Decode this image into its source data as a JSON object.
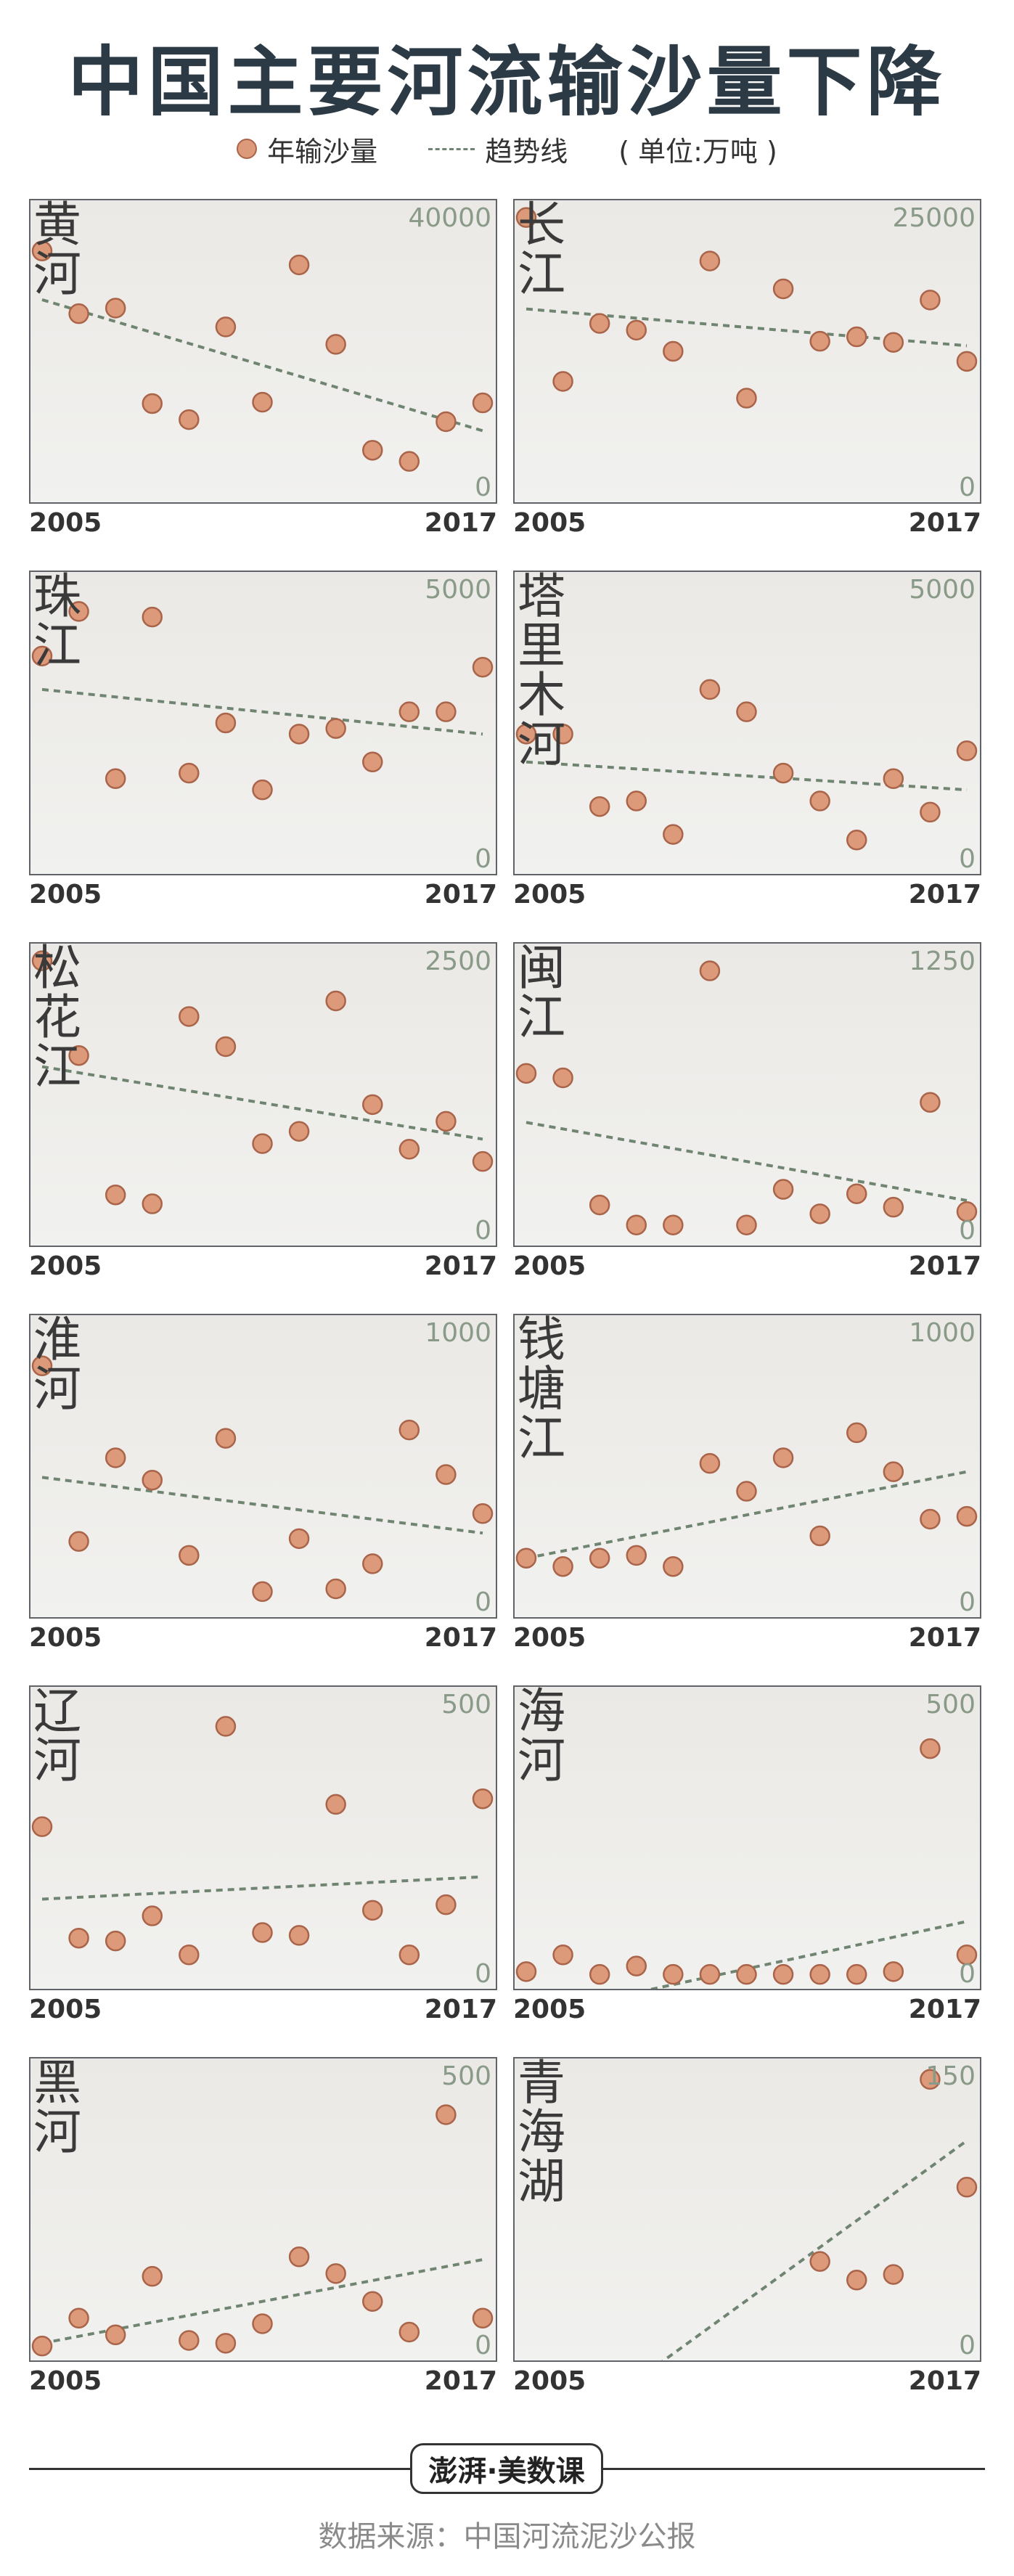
{
  "title": "中国主要河流输沙量下降",
  "legend": {
    "points": "年输沙量",
    "trend": "趋势线",
    "unit": "( 单位:万吨 )"
  },
  "colors": {
    "point_fill": "#dc9a7a",
    "point_stroke": "#a9644a",
    "trend": "#6f8571",
    "axis_text": "#8a9a88"
  },
  "footer": {
    "logo": "澎湃·美数课",
    "source": "数据来源：中国河流泥沙公报"
  },
  "chart_data": [
    {
      "type": "scatter",
      "name": "黄河",
      "x_labels": [
        "2005",
        "2017"
      ],
      "ylim": [
        0,
        40000
      ],
      "y_label_max": "40000",
      "y_label_min": "0",
      "x": [
        2005,
        2006,
        2007,
        2008,
        2009,
        2010,
        2011,
        2012,
        2013,
        2014,
        2015,
        2016,
        2017
      ],
      "values": [
        34400,
        25400,
        26200,
        12500,
        10200,
        23500,
        12700,
        32400,
        21000,
        5800,
        4200,
        9900,
        12600
      ],
      "trend": [
        27400,
        8600
      ]
    },
    {
      "type": "scatter",
      "name": "长江",
      "x_labels": [
        "2005",
        "2017"
      ],
      "ylim": [
        0,
        25000
      ],
      "y_label_max": "25000",
      "y_label_min": "0",
      "x": [
        2005,
        2006,
        2007,
        2008,
        2009,
        2010,
        2011,
        2012,
        2013,
        2014,
        2015,
        2016,
        2017
      ],
      "values": [
        24500,
        9800,
        15000,
        14400,
        12500,
        20600,
        8300,
        18100,
        13400,
        13800,
        13300,
        17100,
        11600
      ],
      "trend": [
        16300,
        13000
      ]
    },
    {
      "type": "scatter",
      "name": "珠江",
      "x_labels": [
        "2005",
        "2017"
      ],
      "ylim": [
        0,
        5000
      ],
      "y_label_max": "5000",
      "y_label_min": "0",
      "x": [
        2005,
        2006,
        2007,
        2008,
        2009,
        2010,
        2011,
        2012,
        2013,
        2014,
        2015,
        2016,
        2017
      ],
      "values": [
        3700,
        4500,
        1500,
        4400,
        1600,
        2500,
        1300,
        2300,
        2400,
        1800,
        2700,
        2700,
        3500
      ],
      "trend": [
        3100,
        2300
      ]
    },
    {
      "type": "scatter",
      "name": "塔里木河",
      "x_labels": [
        "2005",
        "2017"
      ],
      "ylim": [
        0,
        5000
      ],
      "y_label_max": "5000",
      "y_label_min": "0",
      "x": [
        2005,
        2006,
        2007,
        2008,
        2009,
        2010,
        2011,
        2012,
        2013,
        2014,
        2015,
        2016,
        2017
      ],
      "values": [
        2300,
        2300,
        1000,
        1100,
        500,
        3100,
        2700,
        1600,
        1100,
        400,
        1500,
        900,
        2000
      ],
      "trend": [
        1800,
        1300
      ]
    },
    {
      "type": "scatter",
      "name": "松花江",
      "x_labels": [
        "2005",
        "2017"
      ],
      "ylim": [
        0,
        2500
      ],
      "y_label_max": "2500",
      "y_label_min": "0",
      "x": [
        2005,
        2006,
        2007,
        2008,
        2009,
        2010,
        2011,
        2012,
        2013,
        2014,
        2015,
        2016,
        2017
      ],
      "values": [
        2450,
        1600,
        350,
        270,
        1950,
        1680,
        810,
        920,
        2090,
        1160,
        760,
        1010,
        650
      ],
      "trend": [
        1500,
        850
      ]
    },
    {
      "type": "scatter",
      "name": "闽江",
      "x_labels": [
        "2005",
        "2017"
      ],
      "ylim": [
        0,
        1250
      ],
      "y_label_max": "1250",
      "y_label_min": "0",
      "x": [
        2005,
        2006,
        2007,
        2008,
        2009,
        2010,
        2011,
        2012,
        2013,
        2014,
        2015,
        2016,
        2017
      ],
      "values": [
        720,
        700,
        130,
        40,
        40,
        1180,
        40,
        200,
        90,
        180,
        120,
        590,
        100
      ],
      "trend": [
        500,
        150
      ]
    },
    {
      "type": "scatter",
      "name": "淮河",
      "x_labels": [
        "2005",
        "2017"
      ],
      "ylim": [
        0,
        1000
      ],
      "y_label_max": "1000",
      "y_label_min": "0",
      "x": [
        2005,
        2006,
        2007,
        2008,
        2009,
        2010,
        2011,
        2012,
        2013,
        2014,
        2015,
        2016,
        2017
      ],
      "values": [
        860,
        230,
        530,
        450,
        180,
        600,
        50,
        240,
        60,
        150,
        630,
        470,
        330
      ],
      "trend": [
        460,
        260
      ]
    },
    {
      "type": "scatter",
      "name": "钱塘江",
      "x_labels": [
        "2005",
        "2017"
      ],
      "ylim": [
        0,
        1000
      ],
      "y_label_max": "1000",
      "y_label_min": "0",
      "x": [
        2005,
        2006,
        2007,
        2008,
        2009,
        2010,
        2011,
        2012,
        2013,
        2014,
        2015,
        2016,
        2017
      ],
      "values": [
        170,
        140,
        170,
        180,
        140,
        510,
        410,
        530,
        250,
        620,
        480,
        310,
        320
      ],
      "trend": [
        170,
        480
      ]
    },
    {
      "type": "scatter",
      "name": "辽河",
      "x_labels": [
        "2005",
        "2017"
      ],
      "ylim": [
        0,
        500
      ],
      "y_label_max": "500",
      "y_label_min": "0",
      "x": [
        2005,
        2006,
        2007,
        2008,
        2009,
        2010,
        2011,
        2012,
        2013,
        2014,
        2015,
        2016,
        2017
      ],
      "values": [
        270,
        70,
        65,
        110,
        40,
        450,
        80,
        75,
        310,
        120,
        40,
        130,
        320
      ],
      "trend": [
        140,
        180
      ]
    },
    {
      "type": "scatter",
      "name": "海河",
      "x_labels": [
        "2005",
        "2017"
      ],
      "ylim": [
        0,
        500
      ],
      "y_label_max": "500",
      "y_label_min": "0",
      "x": [
        2005,
        2006,
        2007,
        2008,
        2009,
        2010,
        2011,
        2012,
        2013,
        2014,
        2015,
        2016,
        2017
      ],
      "values": [
        10,
        40,
        5,
        20,
        5,
        5,
        5,
        5,
        5,
        5,
        10,
        410,
        40
      ],
      "trend": [
        -70,
        100
      ]
    },
    {
      "type": "scatter",
      "name": "黑河",
      "x_labels": [
        "2005",
        "2017"
      ],
      "ylim": [
        0,
        500
      ],
      "y_label_max": "500",
      "y_label_min": "0",
      "x": [
        2005,
        2006,
        2007,
        2008,
        2009,
        2010,
        2011,
        2012,
        2013,
        2014,
        2015,
        2016,
        2017
      ],
      "values": [
        5,
        55,
        25,
        130,
        15,
        10,
        45,
        165,
        135,
        85,
        30,
        420,
        55
      ],
      "trend": [
        10,
        160
      ]
    },
    {
      "type": "scatter",
      "name": "青海湖",
      "x_labels": [
        "2005",
        "2017"
      ],
      "ylim": [
        0,
        150
      ],
      "y_label_max": "150",
      "y_label_min": "0",
      "x": [
        2013,
        2014,
        2015,
        2016,
        2017
      ],
      "values": [
        47,
        37,
        40,
        145,
        87
      ],
      "trend": [
        -60,
        112
      ]
    }
  ]
}
